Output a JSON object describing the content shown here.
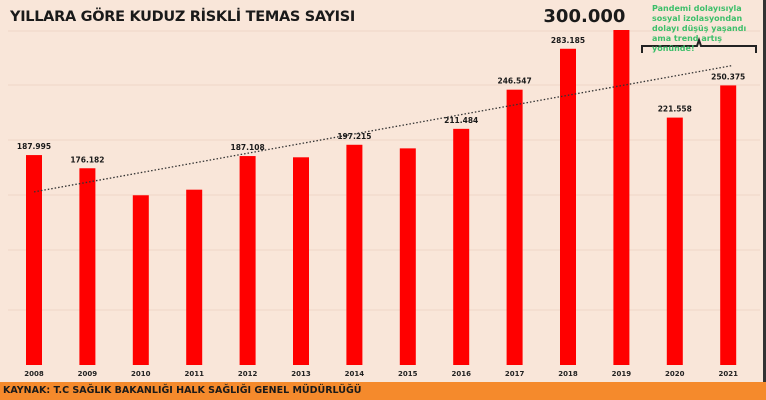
{
  "chart_data": {
    "type": "bar",
    "title": "YILLARA GÖRE KUDUZ RİSKLİ TEMAS SAYISI",
    "xlabel": "",
    "ylabel": "",
    "ylim": [
      0,
      300000
    ],
    "grid": true,
    "categories": [
      "2008",
      "2009",
      "2010",
      "2011",
      "2012",
      "2013",
      "2014",
      "2015",
      "2016",
      "2017",
      "2018",
      "2019",
      "2020",
      "2021"
    ],
    "values": [
      187995,
      176182,
      152000,
      157000,
      187108,
      186000,
      197215,
      194000,
      211484,
      246547,
      283185,
      300000,
      221558,
      250375
    ],
    "data_labels": [
      "187.995",
      "176.182",
      "",
      "",
      "187.108",
      "",
      "197.215",
      "",
      "211.484",
      "246.547",
      "283.185",
      "300.000",
      "221.558",
      "250.375"
    ],
    "trendline": {
      "style": "dotted",
      "start_value": 155000,
      "end_value": 268000
    },
    "annotation": "Pandemi dolayısıyla sosyal izolasyondan dolayı düşüş yaşandı ama trend artış yönünde!",
    "bar_color": "#ff0000",
    "annotation_color": "#3dbf6a"
  },
  "footer": "KAYNAK: T.C SAĞLIK BAKANLIĞI HALK SAĞLIĞI GENEL MÜDÜRLÜĞÜ"
}
